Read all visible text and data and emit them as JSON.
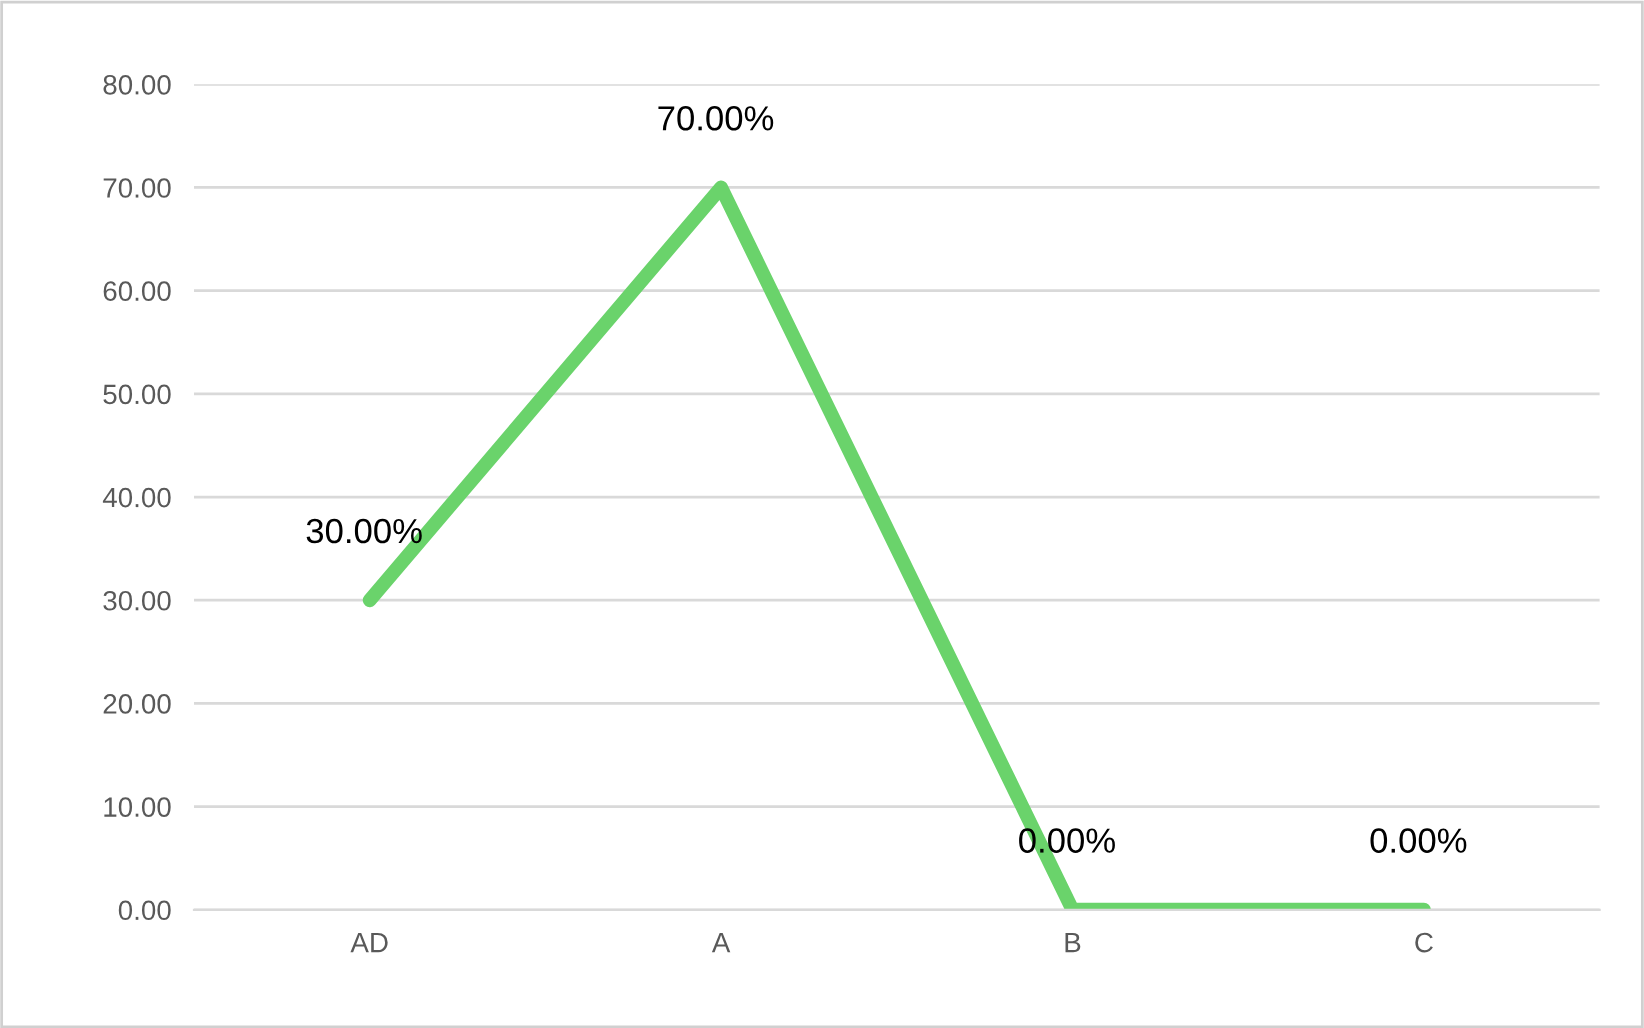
{
  "chart_data": {
    "type": "line",
    "categories": [
      "AD",
      "A",
      "B",
      "C"
    ],
    "series": [
      {
        "color": "#6ad36b",
        "values": [
          30,
          70,
          0,
          0
        ],
        "value_labels": [
          "30.00%",
          "70.00%",
          "0.00%",
          "0.00%"
        ]
      }
    ],
    "ylim": [
      0,
      80
    ],
    "yticks": [
      {
        "value": 0,
        "label": "0.00"
      },
      {
        "value": 10,
        "label": "10.00"
      },
      {
        "value": 20,
        "label": "20.00"
      },
      {
        "value": 30,
        "label": "30.00"
      },
      {
        "value": 40,
        "label": "40.00"
      },
      {
        "value": 50,
        "label": "50.00"
      },
      {
        "value": 60,
        "label": "60.00"
      },
      {
        "value": 70,
        "label": "70.00"
      },
      {
        "value": 80,
        "label": "80.00"
      }
    ],
    "grid": "y",
    "marker": "none",
    "line_style": "solid",
    "legend": false
  }
}
